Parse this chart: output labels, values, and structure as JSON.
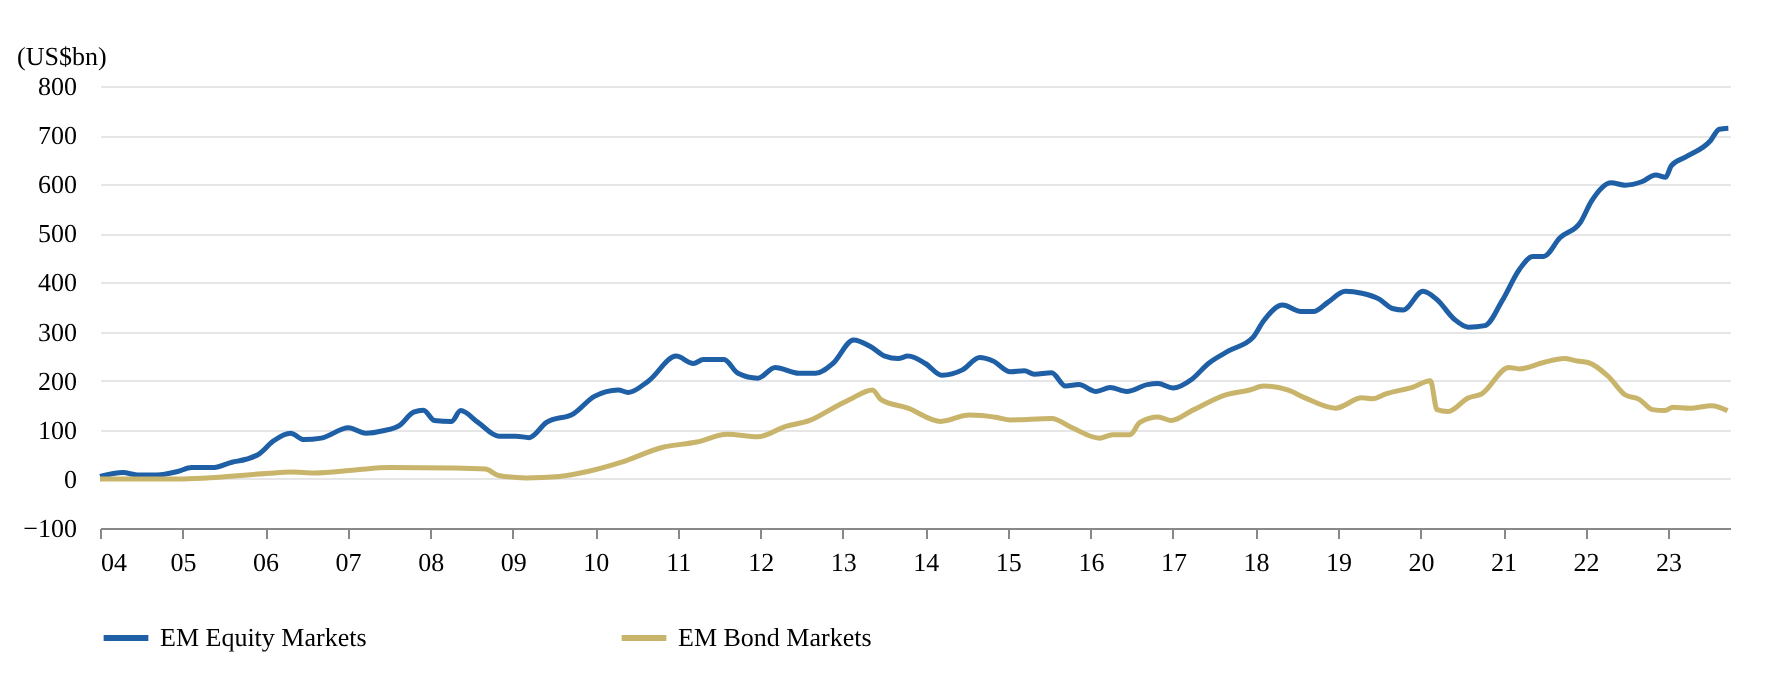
{
  "chart_data": {
    "type": "line",
    "ylabel": "(US$bn)",
    "xlim": [
      2004,
      2023.75
    ],
    "ylim": [
      -100,
      800
    ],
    "xticks": [
      {
        "value": 2004,
        "label": "04"
      },
      {
        "value": 2005,
        "label": "05"
      },
      {
        "value": 2006,
        "label": "06"
      },
      {
        "value": 2007,
        "label": "07"
      },
      {
        "value": 2008,
        "label": "08"
      },
      {
        "value": 2009,
        "label": "09"
      },
      {
        "value": 2010,
        "label": "10"
      },
      {
        "value": 2011,
        "label": "11"
      },
      {
        "value": 2012,
        "label": "12"
      },
      {
        "value": 2013,
        "label": "13"
      },
      {
        "value": 2014,
        "label": "14"
      },
      {
        "value": 2015,
        "label": "15"
      },
      {
        "value": 2016,
        "label": "16"
      },
      {
        "value": 2017,
        "label": "17"
      },
      {
        "value": 2018,
        "label": "18"
      },
      {
        "value": 2019,
        "label": "19"
      },
      {
        "value": 2020,
        "label": "20"
      },
      {
        "value": 2021,
        "label": "21"
      },
      {
        "value": 2022,
        "label": "22"
      },
      {
        "value": 2023,
        "label": "23"
      }
    ],
    "yticks": [
      -100,
      0,
      100,
      200,
      300,
      400,
      500,
      600,
      700,
      800
    ],
    "grid": "y",
    "legend": "bottom",
    "line_style": "solid",
    "marker": "none",
    "series": [
      {
        "name": "EM Equity Markets",
        "color": "#1f5fa6",
        "x": [
          2004.0,
          2004.28,
          2004.45,
          2004.69,
          2004.94,
          2005.11,
          2005.36,
          2005.6,
          2005.77,
          2005.93,
          2006.1,
          2006.31,
          2006.47,
          2006.68,
          2007.01,
          2007.22,
          2007.43,
          2007.63,
          2007.8,
          2007.92,
          2008.05,
          2008.26,
          2008.37,
          2008.58,
          2008.83,
          2009.04,
          2009.2,
          2009.41,
          2009.74,
          2009.99,
          2010.28,
          2010.4,
          2010.65,
          2010.98,
          2011.19,
          2011.31,
          2011.56,
          2011.73,
          2011.97,
          2012.18,
          2012.47,
          2012.67,
          2012.88,
          2013.13,
          2013.34,
          2013.51,
          2013.67,
          2013.79,
          2014.0,
          2014.2,
          2014.45,
          2014.66,
          2014.82,
          2015.03,
          2015.2,
          2015.32,
          2015.53,
          2015.7,
          2015.86,
          2016.07,
          2016.24,
          2016.44,
          2016.69,
          2016.82,
          2017.0,
          2017.23,
          2017.43,
          2017.68,
          2017.97,
          2018.1,
          2018.33,
          2018.55,
          2018.71,
          2018.88,
          2019.09,
          2019.29,
          2019.5,
          2019.66,
          2019.79,
          2020.03,
          2020.2,
          2020.41,
          2020.58,
          2020.78,
          2020.99,
          2021.2,
          2021.36,
          2021.49,
          2021.69,
          2021.94,
          2022.07,
          2022.31,
          2022.48,
          2022.68,
          2022.85,
          2022.97,
          2023.04,
          2023.22,
          2023.51,
          2023.62,
          2023.73
        ],
        "values": [
          5,
          13,
          8,
          8,
          15,
          23,
          23,
          34,
          40,
          51,
          77,
          93,
          80,
          83,
          104,
          93,
          98,
          109,
          136,
          140,
          119,
          117,
          139,
          115,
          87,
          87,
          84,
          115,
          133,
          168,
          181,
          176,
          200,
          250,
          235,
          243,
          243,
          215,
          205,
          227,
          215,
          215,
          235,
          283,
          269,
          250,
          245,
          250,
          235,
          211,
          222,
          247,
          240,
          218,
          220,
          213,
          216,
          189,
          192,
          178,
          186,
          178,
          192,
          194,
          185,
          203,
          235,
          261,
          288,
          322,
          354,
          341,
          341,
          360,
          382,
          378,
          366,
          347,
          344,
          382,
          365,
          325,
          309,
          312,
          363,
          427,
          453,
          453,
          491,
          523,
          565,
          603,
          598,
          605,
          619,
          614,
          638,
          656,
          688,
          712,
          714
        ]
      },
      {
        "name": "EM Bond Markets",
        "color": "#c9b46c",
        "x": [
          2004.0,
          2004.94,
          2006.02,
          2006.31,
          2006.6,
          2007.09,
          2007.5,
          2008.26,
          2008.67,
          2008.83,
          2009.16,
          2009.57,
          2009.91,
          2010.32,
          2010.81,
          2011.23,
          2011.6,
          2011.97,
          2012.31,
          2012.6,
          2012.88,
          2013.09,
          2013.36,
          2013.46,
          2013.79,
          2014.19,
          2014.53,
          2014.87,
          2015.03,
          2015.53,
          2015.78,
          2016.11,
          2016.27,
          2016.48,
          2016.6,
          2016.82,
          2016.98,
          2017.23,
          2017.64,
          2017.93,
          2018.1,
          2018.39,
          2018.6,
          2018.97,
          2019.29,
          2019.42,
          2019.58,
          2019.91,
          2020.12,
          2020.2,
          2020.33,
          2020.58,
          2020.74,
          2021.07,
          2021.2,
          2021.49,
          2021.74,
          2021.9,
          2022.03,
          2022.28,
          2022.48,
          2022.65,
          2022.81,
          2022.96,
          2023.06,
          2023.26,
          2023.53,
          2023.72
        ],
        "values": [
          0,
          0,
          11,
          14,
          12,
          18,
          23,
          22,
          20,
          7,
          2,
          5,
          15,
          34,
          64,
          75,
          91,
          86,
          107,
          119,
          144,
          162,
          181,
          162,
          144,
          117,
          130,
          125,
          120,
          123,
          104,
          83,
          90,
          90,
          115,
          126,
          119,
          139,
          171,
          181,
          189,
          181,
          165,
          144,
          165,
          163,
          173,
          187,
          200,
          141,
          137,
          165,
          173,
          227,
          224,
          237,
          245,
          240,
          237,
          208,
          171,
          162,
          141,
          139,
          146,
          144,
          149,
          139
        ]
      }
    ]
  }
}
